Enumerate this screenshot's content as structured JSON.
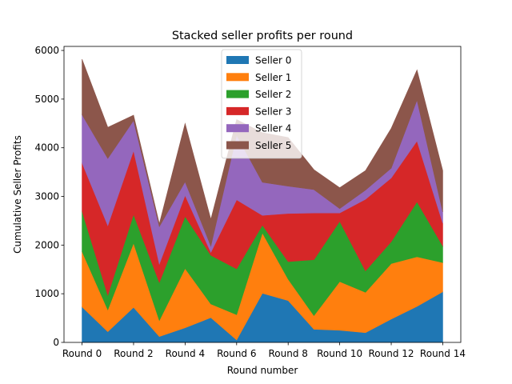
{
  "chart_data": {
    "type": "area",
    "stacked": true,
    "title": "Stacked seller profits per round",
    "xlabel": "Round number",
    "ylabel": "Cumulative Seller Profits",
    "ylim": [
      0,
      6000
    ],
    "yticks": [
      0,
      1000,
      2000,
      3000,
      4000,
      5000,
      6000
    ],
    "x": [
      0,
      1,
      2,
      3,
      4,
      5,
      6,
      7,
      8,
      9,
      10,
      11,
      12,
      13,
      14
    ],
    "xtick_values": [
      0,
      2,
      4,
      6,
      8,
      10,
      12,
      14
    ],
    "xtick_labels": [
      "Round 0",
      "Round 2",
      "Round 4",
      "Round 6",
      "Round 8",
      "Round 10",
      "Round 12",
      "Round 14"
    ],
    "legend_position": "upper-center",
    "grid": false,
    "series": [
      {
        "name": "Seller 0",
        "color": "#1f77b4",
        "values": [
          730,
          220,
          720,
          120,
          300,
          510,
          50,
          1010,
          860,
          270,
          250,
          200,
          480,
          740,
          1040
        ]
      },
      {
        "name": "Seller 1",
        "color": "#ff7f0e",
        "values": [
          1140,
          450,
          1320,
          330,
          1220,
          280,
          520,
          1240,
          440,
          280,
          1000,
          830,
          1140,
          1020,
          600
        ]
      },
      {
        "name": "Seller 2",
        "color": "#2ca02c",
        "values": [
          830,
          300,
          590,
          780,
          1070,
          1000,
          940,
          160,
          360,
          1150,
          1240,
          440,
          450,
          1130,
          340
        ]
      },
      {
        "name": "Seller 3",
        "color": "#d62728",
        "values": [
          990,
          1430,
          1310,
          380,
          430,
          60,
          1420,
          200,
          990,
          960,
          170,
          1470,
          1310,
          1250,
          470
        ]
      },
      {
        "name": "Seller 4",
        "color": "#9467bd",
        "values": [
          990,
          1380,
          620,
          770,
          280,
          130,
          1330,
          680,
          560,
          480,
          90,
          190,
          200,
          840,
          230
        ]
      },
      {
        "name": "Seller 5",
        "color": "#8c564b",
        "values": [
          1140,
          640,
          110,
          60,
          1200,
          550,
          320,
          1020,
          1000,
          410,
          430,
          400,
          820,
          620,
          850
        ]
      }
    ]
  }
}
